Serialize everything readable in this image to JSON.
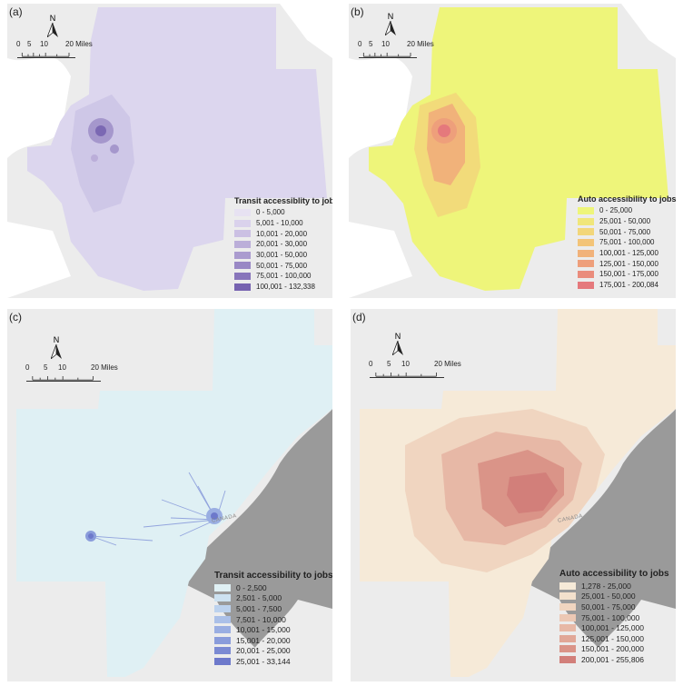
{
  "panels": [
    {
      "label": "(a)",
      "compass": "N",
      "scale_ticks": [
        "0",
        "5",
        "10",
        "20 Miles"
      ],
      "legend_title": "Transit accessiblity to jobs",
      "legend": [
        {
          "label": "0 - 5,000",
          "color": "#e7e2f2"
        },
        {
          "label": "5,001 - 10,000",
          "color": "#dad2ec"
        },
        {
          "label": "10,001 - 20,000",
          "color": "#cbc0e3"
        },
        {
          "label": "20,001 - 30,000",
          "color": "#bbaed9"
        },
        {
          "label": "30,001 - 50,000",
          "color": "#aa9bcf"
        },
        {
          "label": "50,001 - 75,000",
          "color": "#9988c5"
        },
        {
          "label": "75,001 - 100,000",
          "color": "#8875bb"
        },
        {
          "label": "100,001 - 132,338",
          "color": "#7662b0"
        }
      ]
    },
    {
      "label": "(b)",
      "compass": "N",
      "scale_ticks": [
        "0",
        "5",
        "10",
        "20 Miles"
      ],
      "legend_title": "Auto accessibility to jobs",
      "legend": [
        {
          "label": "0 - 25,000",
          "color": "#eef57a"
        },
        {
          "label": "25,001 - 50,000",
          "color": "#f0e67a"
        },
        {
          "label": "50,001 - 75,000",
          "color": "#f2d67a"
        },
        {
          "label": "75,001 - 100,000",
          "color": "#f3c478"
        },
        {
          "label": "100,001 - 125,000",
          "color": "#f1b27a"
        },
        {
          "label": "125,001 - 150,000",
          "color": "#ee9f7b"
        },
        {
          "label": "150,001 - 175,000",
          "color": "#ea8c7c"
        },
        {
          "label": "175,001 - 200,084",
          "color": "#e5797c"
        }
      ]
    },
    {
      "label": "(c)",
      "compass": "N",
      "scale_ticks": [
        "0",
        "5",
        "10",
        "20 Miles"
      ],
      "legend_title": "Transit accessibility to jobs",
      "canada": "CANADA",
      "legend": [
        {
          "label": "0 - 2,500",
          "color": "#dff0f4"
        },
        {
          "label": "2,501 - 5,000",
          "color": "#cde2f1"
        },
        {
          "label": "5,001 - 7,500",
          "color": "#bcd2ee"
        },
        {
          "label": "7,501 - 10,000",
          "color": "#abc0e8"
        },
        {
          "label": "10,001 - 15,000",
          "color": "#9aaee2"
        },
        {
          "label": "15,001 - 20,000",
          "color": "#8a9cdb"
        },
        {
          "label": "20,001 - 25,000",
          "color": "#7b8ad3"
        },
        {
          "label": "25,001 - 33,144",
          "color": "#6d79cb"
        }
      ]
    },
    {
      "label": "(d)",
      "compass": "N",
      "scale_ticks": [
        "0",
        "5",
        "10",
        "20 Miles"
      ],
      "legend_title": "Auto accessibility to jobs",
      "canada": "CANADA",
      "legend": [
        {
          "label": "1,278 - 25,000",
          "color": "#f6ead8"
        },
        {
          "label": "25,001 - 50,000",
          "color": "#f3e0cc"
        },
        {
          "label": "50,001 - 75,000",
          "color": "#f0d5c0"
        },
        {
          "label": "75,001 - 100,000",
          "color": "#ecc8b4"
        },
        {
          "label": "100,001 - 125,000",
          "color": "#e7b8a6"
        },
        {
          "label": "125,001 - 150,000",
          "color": "#e1a797"
        },
        {
          "label": "150,001 - 200,000",
          "color": "#da9488"
        },
        {
          "label": "200,001 - 255,806",
          "color": "#d27f7a"
        }
      ]
    }
  ]
}
